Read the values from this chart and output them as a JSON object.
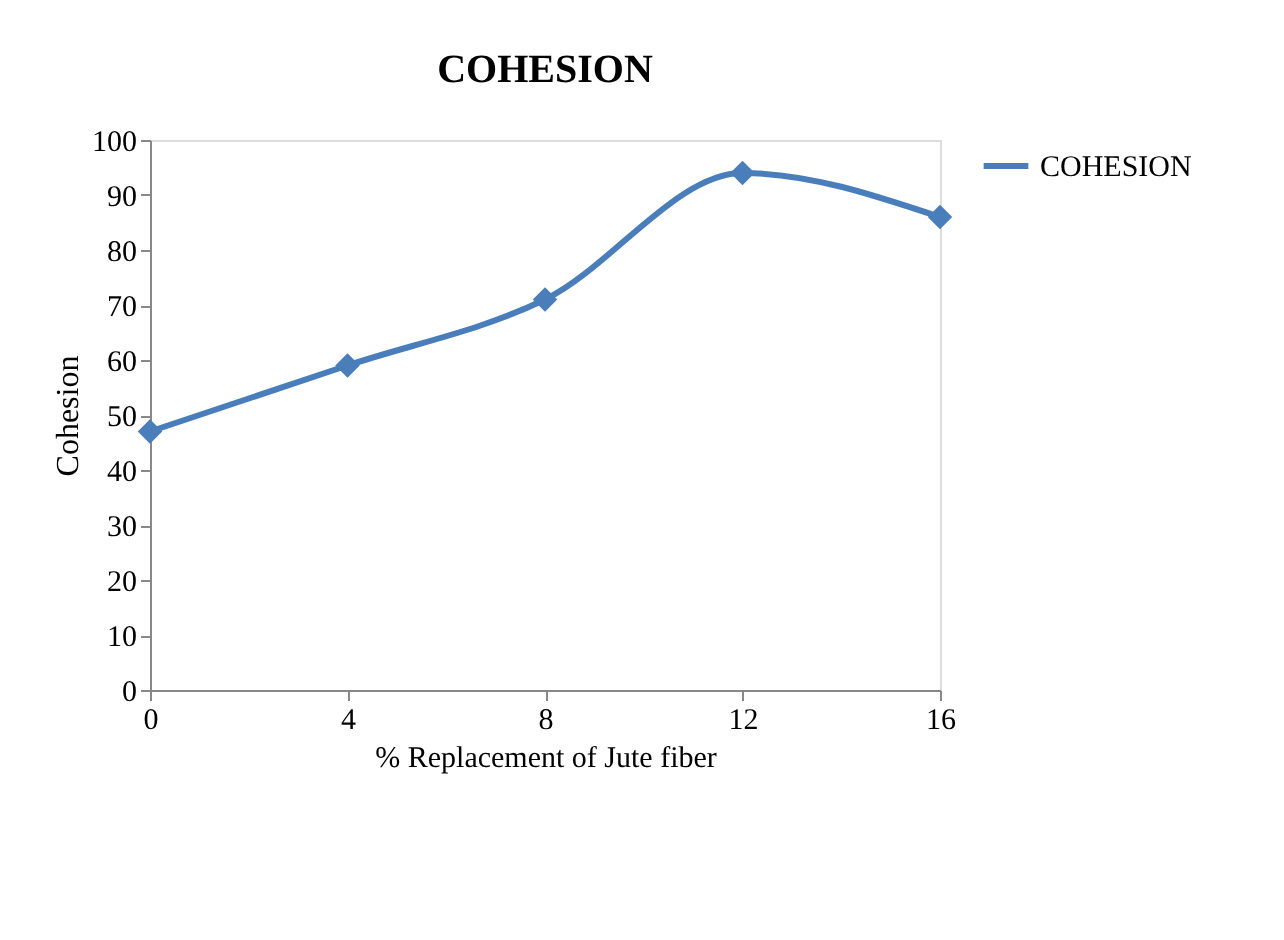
{
  "chart_data": {
    "type": "line",
    "title": "COHESION",
    "xlabel": "% Replacement of Jute fiber",
    "ylabel": "Cohesion",
    "x": [
      0,
      4,
      8,
      12,
      16
    ],
    "series": [
      {
        "name": "COHESION",
        "color": "#4a7ebb",
        "values": [
          47,
          59,
          71,
          94,
          86
        ]
      }
    ],
    "xlim": [
      0,
      16
    ],
    "xticks": [
      0,
      4,
      8,
      12,
      16
    ],
    "ylim": [
      0,
      100
    ],
    "yticks": [
      0,
      10,
      20,
      30,
      40,
      50,
      60,
      70,
      80,
      90,
      100
    ],
    "grid": false,
    "legend": "right",
    "marker": "diamond",
    "line_style": "solid"
  }
}
